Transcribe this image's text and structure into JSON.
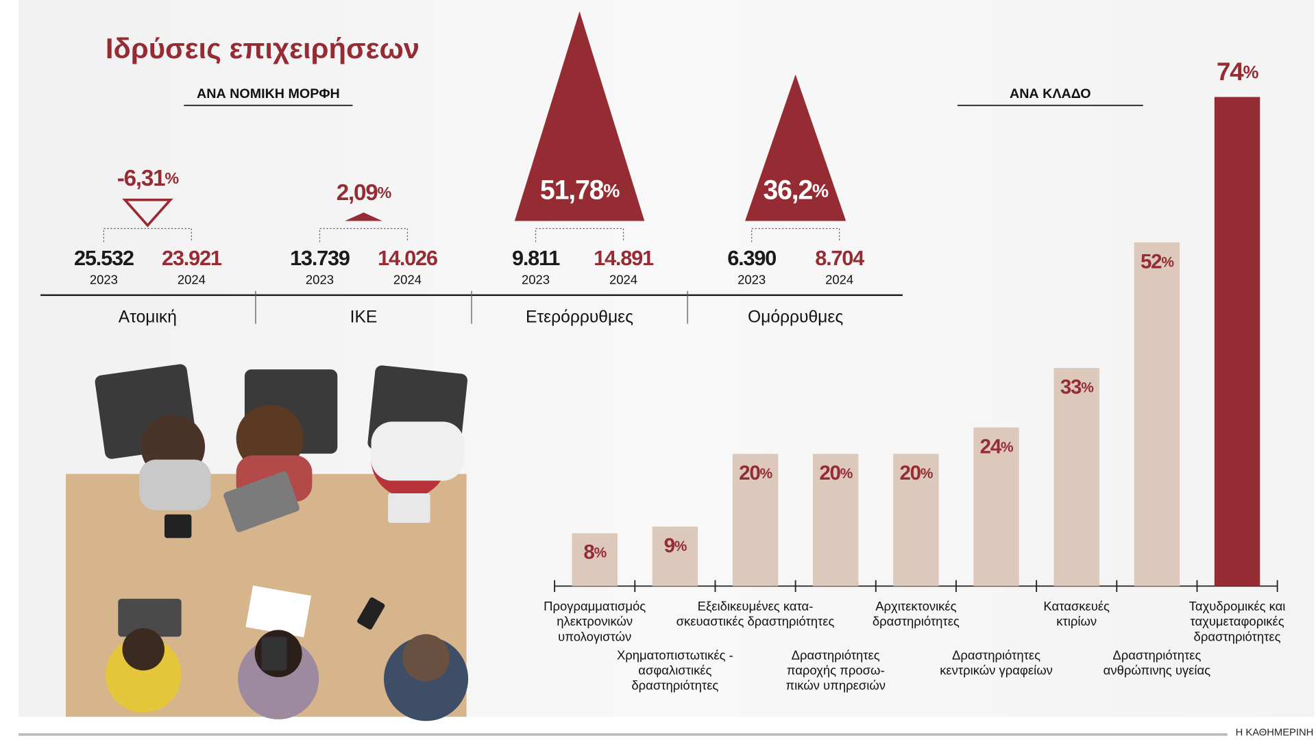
{
  "title": "Ιδρύσεις επιχειρήσεων",
  "source": "Η ΚΑΘΗΜΕΡΙΝΗ",
  "chart_data": [
    {
      "type": "triangle",
      "subtitle": "ΑΝΑ ΝΟΜΙΚΗ ΜΟΡΦΗ",
      "categories": [
        "Ατομική",
        "ΙΚΕ",
        "Ετερόρρυθμες",
        "Ομόρρυθμες"
      ],
      "series": [
        {
          "name": "2023",
          "color": "#1a1a1a",
          "values": [
            25532,
            13739,
            9811,
            6390
          ],
          "value_labels": [
            "25.532",
            "13.739",
            "9.811",
            "6.390"
          ]
        },
        {
          "name": "2024",
          "color": "#962c33",
          "values": [
            23921,
            14026,
            14891,
            8704
          ],
          "value_labels": [
            "23.921",
            "14.026",
            "14.891",
            "8.704"
          ]
        }
      ],
      "change": {
        "color": "#962c33",
        "values": [
          -6.31,
          2.09,
          51.78,
          36.2
        ],
        "value_labels": [
          "-6,31%",
          "2,09%",
          "51,78%",
          "36,2%"
        ]
      }
    },
    {
      "type": "bar",
      "subtitle": "ΑΝΑ ΚΛΑΔΟ",
      "categories": [
        [
          "Προγραμματισμός",
          "ηλεκτρονικών",
          "υπολογιστών"
        ],
        [
          "Χρηματοπιστωτικές -",
          "ασφαλιστικές",
          "δραστηριότητες"
        ],
        [
          "Εξειδικευμένες κατα-",
          "σκευαστικές δραστηριότητες"
        ],
        [
          "Δραστηριότητες",
          "παροχής προσω-",
          "πικών υπηρεσιών"
        ],
        [
          "Αρχιτεκτονικές",
          "δραστηριότητες"
        ],
        [
          "Δραστηριότητες",
          "κεντρικών γραφείων"
        ],
        [
          "Κατασκευές",
          "κτιρίων"
        ],
        [
          "Δραστηριότητες",
          "ανθρώπινης υγείας"
        ],
        [
          "Ταχυδρομικές και",
          "ταχυμεταφορικές",
          "δραστηριότητες"
        ]
      ],
      "values": [
        8,
        9,
        20,
        20,
        20,
        24,
        33,
        52,
        74
      ],
      "value_labels": [
        "8%",
        "9%",
        "20%",
        "20%",
        "20%",
        "24%",
        "33%",
        "52%",
        "74%"
      ],
      "colors": [
        "#dcc9bb",
        "#dcc9bb",
        "#dcc9bb",
        "#dcc9bb",
        "#dcc9bb",
        "#dcc9bb",
        "#dcc9bb",
        "#dcc9bb",
        "#962c33"
      ]
    }
  ]
}
